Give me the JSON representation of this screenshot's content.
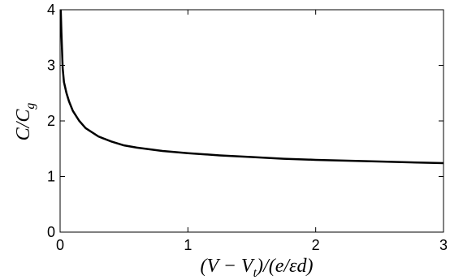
{
  "chart_data": {
    "type": "line",
    "title": "",
    "xlabel": "(V − V",
    "xlabel_sub": "t",
    "xlabel_tail": ")/(e/εd)",
    "ylabel": "C/C",
    "ylabel_sub": "g",
    "xlim": [
      0,
      3
    ],
    "ylim": [
      0,
      4
    ],
    "xticks": [
      0,
      1,
      2,
      3
    ],
    "yticks": [
      0,
      1,
      2,
      3,
      4
    ],
    "grid": false,
    "series": [
      {
        "color": "#000000",
        "x": [
          0.005,
          0.01,
          0.02,
          0.03,
          0.05,
          0.07,
          0.1,
          0.15,
          0.2,
          0.3,
          0.4,
          0.5,
          0.6,
          0.8,
          1.0,
          1.25,
          1.5,
          1.75,
          2.0,
          2.5,
          3.0
        ],
        "y": [
          4.0,
          3.6,
          2.95,
          2.7,
          2.5,
          2.35,
          2.18,
          2.0,
          1.87,
          1.72,
          1.63,
          1.56,
          1.52,
          1.46,
          1.42,
          1.38,
          1.35,
          1.32,
          1.3,
          1.27,
          1.24
        ]
      }
    ]
  }
}
